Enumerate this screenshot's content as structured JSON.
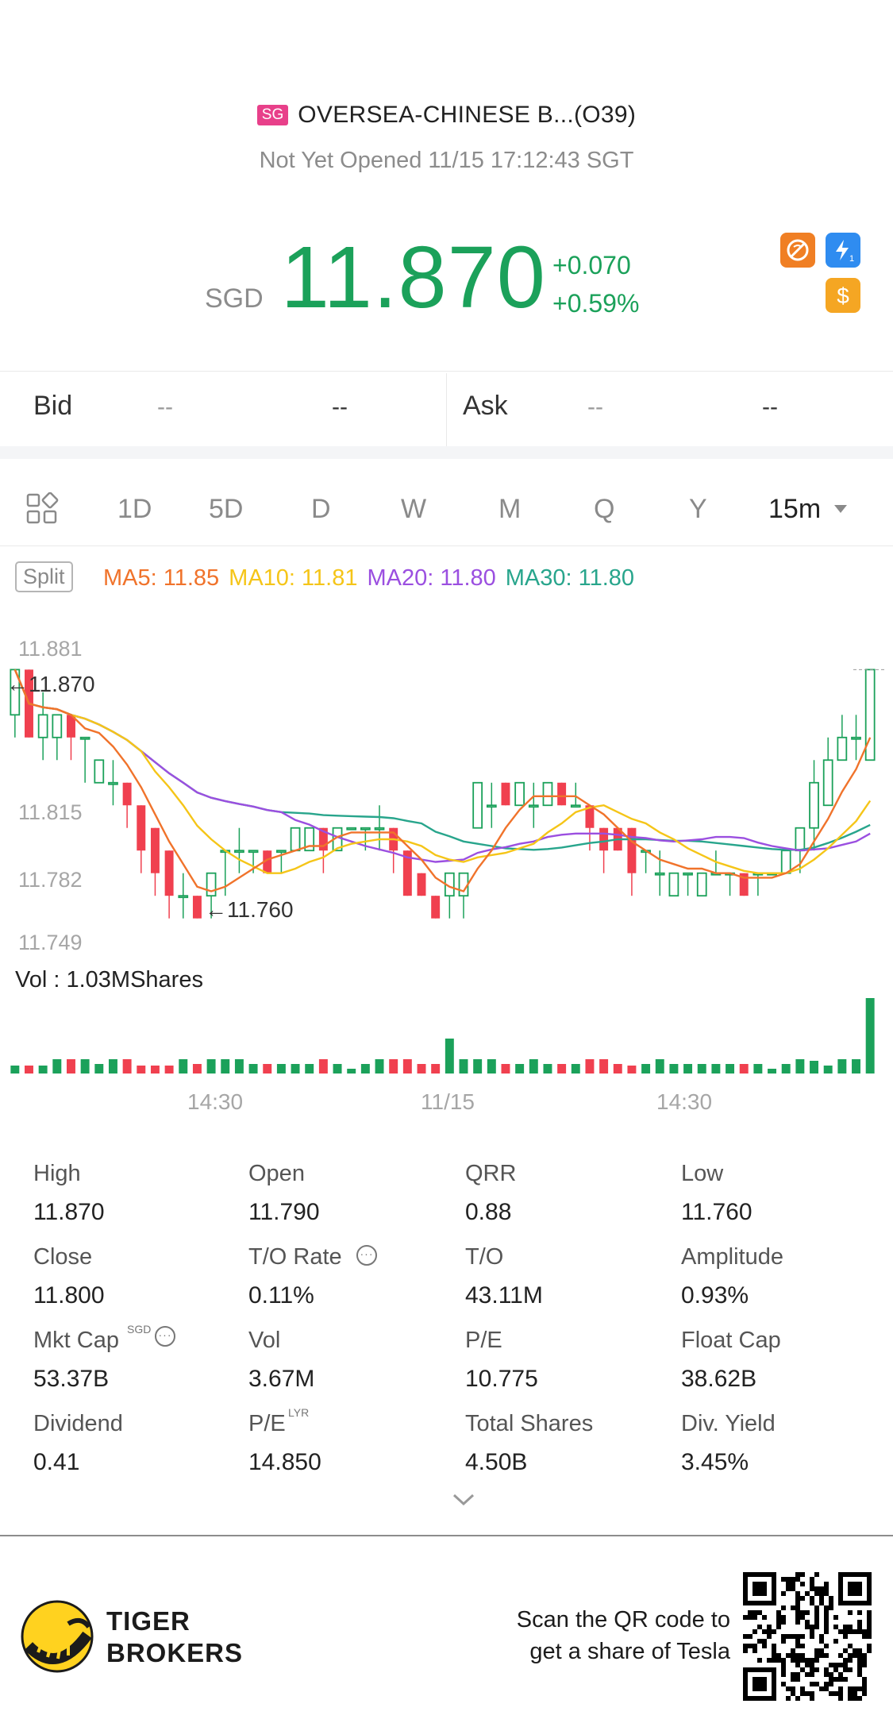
{
  "header": {
    "market_badge": "SG",
    "name": "OVERSEA-CHINESE B...(O39)",
    "status": "Not Yet Opened 11/15 17:12:43 SGT",
    "currency": "SGD",
    "price": "11.870",
    "change": "+0.070",
    "change_pct": "+0.59%",
    "icons": [
      "no-short-icon",
      "lightning-level1-icon",
      "dollar-icon"
    ]
  },
  "quote": {
    "bid_label": "Bid",
    "bid_price": "--",
    "bid_size": "--",
    "ask_label": "Ask",
    "ask_price": "--",
    "ask_size": "--"
  },
  "tabs": {
    "items": [
      "1D",
      "5D",
      "D",
      "W",
      "M",
      "Q",
      "Y"
    ],
    "active": "15m",
    "icon": "layout-grid-icon",
    "dropdown_icon": "caret-down-icon"
  },
  "indicators": {
    "split_label": "Split",
    "ma5": "MA5: 11.85",
    "ma10": "MA10: 11.81",
    "ma20": "MA20: 11.80",
    "ma30": "MA30: 11.80",
    "colors": {
      "ma5": "#f0732b",
      "ma10": "#f5c518",
      "ma20": "#9b4fe0",
      "ma30": "#28a58c",
      "up": "#1ba15a",
      "down": "#f0404f"
    }
  },
  "chart": {
    "y_labels": [
      "11.881",
      "11.815",
      "11.782",
      "11.749"
    ],
    "last_price_marker": "11.870",
    "low_marker": "11.760",
    "vol_label": "Vol  : 1.03MShares",
    "x_labels": [
      "14:30",
      "11/15",
      "14:30"
    ]
  },
  "chart_data": {
    "type": "candlestick",
    "interval": "15m",
    "y_axis_ticks": [
      11.881,
      11.815,
      11.782,
      11.749
    ],
    "candles": [
      {
        "open": 11.85,
        "close": 11.87,
        "high": 11.87,
        "low": 11.84
      },
      {
        "open": 11.87,
        "close": 11.84,
        "high": 11.87,
        "low": 11.84
      },
      {
        "open": 11.84,
        "close": 11.85,
        "high": 11.86,
        "low": 11.83
      },
      {
        "open": 11.84,
        "close": 11.85,
        "high": 11.85,
        "low": 11.83
      },
      {
        "open": 11.85,
        "close": 11.84,
        "high": 11.85,
        "low": 11.83
      },
      {
        "open": 11.84,
        "close": 11.84,
        "high": 11.84,
        "low": 11.82
      },
      {
        "open": 11.82,
        "close": 11.83,
        "high": 11.83,
        "low": 11.82
      },
      {
        "open": 11.82,
        "close": 11.82,
        "high": 11.83,
        "low": 11.81
      },
      {
        "open": 11.82,
        "close": 11.81,
        "high": 11.82,
        "low": 11.8
      },
      {
        "open": 11.81,
        "close": 11.79,
        "high": 11.81,
        "low": 11.78
      },
      {
        "open": 11.8,
        "close": 11.78,
        "high": 11.8,
        "low": 11.77
      },
      {
        "open": 11.79,
        "close": 11.77,
        "high": 11.79,
        "low": 11.76
      },
      {
        "open": 11.77,
        "close": 11.77,
        "high": 11.78,
        "low": 11.76
      },
      {
        "open": 11.77,
        "close": 11.76,
        "high": 11.77,
        "low": 11.76
      },
      {
        "open": 11.77,
        "close": 11.78,
        "high": 11.78,
        "low": 11.76
      },
      {
        "open": 11.79,
        "close": 11.79,
        "high": 11.79,
        "low": 11.77
      },
      {
        "open": 11.79,
        "close": 11.79,
        "high": 11.8,
        "low": 11.78
      },
      {
        "open": 11.79,
        "close": 11.79,
        "high": 11.79,
        "low": 11.78
      },
      {
        "open": 11.79,
        "close": 11.78,
        "high": 11.79,
        "low": 11.78
      },
      {
        "open": 11.79,
        "close": 11.79,
        "high": 11.79,
        "low": 11.78
      },
      {
        "open": 11.79,
        "close": 11.8,
        "high": 11.8,
        "low": 11.79
      },
      {
        "open": 11.79,
        "close": 11.8,
        "high": 11.8,
        "low": 11.79
      },
      {
        "open": 11.8,
        "close": 11.79,
        "high": 11.8,
        "low": 11.78
      },
      {
        "open": 11.79,
        "close": 11.8,
        "high": 11.8,
        "low": 11.79
      },
      {
        "open": 11.8,
        "close": 11.8,
        "high": 11.8,
        "low": 11.8
      },
      {
        "open": 11.8,
        "close": 11.8,
        "high": 11.8,
        "low": 11.79
      },
      {
        "open": 11.8,
        "close": 11.8,
        "high": 11.81,
        "low": 11.79
      },
      {
        "open": 11.8,
        "close": 11.79,
        "high": 11.8,
        "low": 11.78
      },
      {
        "open": 11.79,
        "close": 11.77,
        "high": 11.79,
        "low": 11.77
      },
      {
        "open": 11.78,
        "close": 11.77,
        "high": 11.78,
        "low": 11.77
      },
      {
        "open": 11.77,
        "close": 11.76,
        "high": 11.77,
        "low": 11.76
      },
      {
        "open": 11.77,
        "close": 11.78,
        "high": 11.78,
        "low": 11.76
      },
      {
        "open": 11.77,
        "close": 11.78,
        "high": 11.78,
        "low": 11.76
      },
      {
        "open": 11.8,
        "close": 11.82,
        "high": 11.82,
        "low": 11.8
      },
      {
        "open": 11.81,
        "close": 11.81,
        "high": 11.82,
        "low": 11.8
      },
      {
        "open": 11.82,
        "close": 11.81,
        "high": 11.82,
        "low": 11.81
      },
      {
        "open": 11.81,
        "close": 11.82,
        "high": 11.82,
        "low": 11.81
      },
      {
        "open": 11.81,
        "close": 11.81,
        "high": 11.82,
        "low": 11.8
      },
      {
        "open": 11.81,
        "close": 11.82,
        "high": 11.82,
        "low": 11.81
      },
      {
        "open": 11.82,
        "close": 11.81,
        "high": 11.82,
        "low": 11.81
      },
      {
        "open": 11.81,
        "close": 11.81,
        "high": 11.82,
        "low": 11.81
      },
      {
        "open": 11.81,
        "close": 11.8,
        "high": 11.81,
        "low": 11.79
      },
      {
        "open": 11.8,
        "close": 11.79,
        "high": 11.8,
        "low": 11.78
      },
      {
        "open": 11.8,
        "close": 11.79,
        "high": 11.8,
        "low": 11.79
      },
      {
        "open": 11.8,
        "close": 11.78,
        "high": 11.8,
        "low": 11.77
      },
      {
        "open": 11.79,
        "close": 11.79,
        "high": 11.79,
        "low": 11.78
      },
      {
        "open": 11.78,
        "close": 11.78,
        "high": 11.79,
        "low": 11.77
      },
      {
        "open": 11.77,
        "close": 11.78,
        "high": 11.78,
        "low": 11.77
      },
      {
        "open": 11.78,
        "close": 11.78,
        "high": 11.78,
        "low": 11.77
      },
      {
        "open": 11.77,
        "close": 11.78,
        "high": 11.78,
        "low": 11.77
      },
      {
        "open": 11.78,
        "close": 11.78,
        "high": 11.79,
        "low": 11.78
      },
      {
        "open": 11.78,
        "close": 11.78,
        "high": 11.78,
        "low": 11.77
      },
      {
        "open": 11.78,
        "close": 11.77,
        "high": 11.78,
        "low": 11.77
      },
      {
        "open": 11.78,
        "close": 11.78,
        "high": 11.78,
        "low": 11.77
      },
      {
        "open": 11.78,
        "close": 11.78,
        "high": 11.78,
        "low": 11.78
      },
      {
        "open": 11.78,
        "close": 11.79,
        "high": 11.79,
        "low": 11.78
      },
      {
        "open": 11.79,
        "close": 11.8,
        "high": 11.8,
        "low": 11.78
      },
      {
        "open": 11.8,
        "close": 11.82,
        "high": 11.83,
        "low": 11.79
      },
      {
        "open": 11.81,
        "close": 11.83,
        "high": 11.84,
        "low": 11.81
      },
      {
        "open": 11.83,
        "close": 11.84,
        "high": 11.85,
        "low": 11.83
      },
      {
        "open": 11.84,
        "close": 11.84,
        "high": 11.85,
        "low": 11.83
      },
      {
        "open": 11.83,
        "close": 11.87,
        "high": 11.87,
        "low": 11.83
      }
    ],
    "ma_values_shown": {
      "MA5": 11.85,
      "MA10": 11.81,
      "MA20": 11.8,
      "MA30": 11.8
    },
    "last_price": 11.87,
    "low_marker": 11.76,
    "volume_total_label": "1.03MShares",
    "x_ticks": [
      "14:30",
      "11/15",
      "14:30"
    ]
  },
  "stats": [
    {
      "label": "High",
      "value": "11.870"
    },
    {
      "label": "Open",
      "value": "11.790"
    },
    {
      "label": "QRR",
      "value": "0.88"
    },
    {
      "label": "Low",
      "value": "11.760"
    },
    {
      "label": "Close",
      "value": "11.800"
    },
    {
      "label": "T/O Rate",
      "value": "0.11%"
    },
    {
      "label": "T/O",
      "value": "43.11M"
    },
    {
      "label": "Amplitude",
      "value": "0.93%"
    },
    {
      "label": "Mkt Cap",
      "value": "53.37B",
      "sup": "SGD"
    },
    {
      "label": "Vol",
      "value": "3.67M"
    },
    {
      "label": "P/E",
      "value": "10.775"
    },
    {
      "label": "Float Cap",
      "value": "38.62B"
    },
    {
      "label": "Dividend",
      "value": "0.41"
    },
    {
      "label": "P/E",
      "value": "14.850",
      "sup": "LYR"
    },
    {
      "label": "Total Shares",
      "value": "4.50B"
    },
    {
      "label": "Div. Yield",
      "value": "3.45%"
    }
  ],
  "footer": {
    "brand_line1": "TIGER",
    "brand_line2": "BROKERS",
    "scan_line1": "Scan the QR code to",
    "scan_line2": "get a share of Tesla"
  }
}
